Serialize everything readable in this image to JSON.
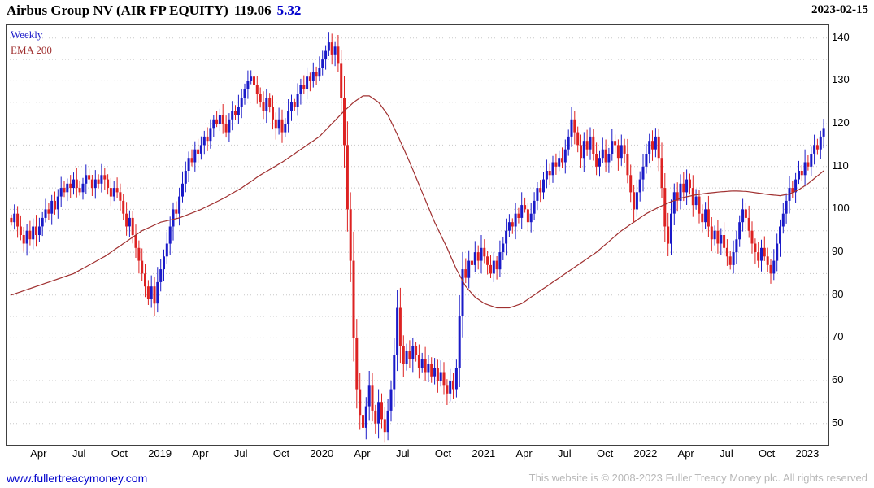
{
  "header": {
    "title": "Airbus Group NV (AIR FP EQUITY)",
    "price": "119.06",
    "change": "5.32",
    "date": "2023-02-15"
  },
  "legend": {
    "timeframe": "Weekly",
    "ema_label": "EMA 200"
  },
  "footer": {
    "site_link": "www.fullertreacymoney.com",
    "copyright": "This website is © 2008-2023 Fuller Treacy Money plc. All rights reserved"
  },
  "colors": {
    "up": "#1a1ac8",
    "down": "#dd2222",
    "ema": "#a03030",
    "grid": "#c8c8c8",
    "accent": "#0000cc",
    "muted": "#b8b8b8"
  },
  "chart_data": {
    "type": "candlestick",
    "instrument": "Airbus Group NV (AIR FP EQUITY)",
    "timeframe": "Weekly",
    "overlay": "EMA 200",
    "last_price": 119.06,
    "change": 5.32,
    "as_of": "2023-02-15",
    "ylim": [
      45,
      143
    ],
    "y_ticks": [
      50,
      60,
      70,
      80,
      90,
      100,
      110,
      120,
      130,
      140
    ],
    "y_minor_step": 5,
    "x_labels": [
      "Apr",
      "Jul",
      "Oct",
      "2019",
      "Apr",
      "Jul",
      "Oct",
      "2020",
      "Apr",
      "Jul",
      "Oct",
      "2021",
      "Apr",
      "Jul",
      "Oct",
      "2022",
      "Apr",
      "Jul",
      "Oct",
      "2023"
    ],
    "weeks_per_label": 13,
    "start_week_offset": 9,
    "first_open": 98,
    "closes": [
      97,
      99,
      96,
      94,
      92,
      95,
      93,
      96,
      94,
      96,
      98,
      100,
      99,
      102,
      100,
      103,
      105,
      104,
      106,
      105,
      107,
      105,
      104,
      106,
      108,
      107,
      105,
      107,
      106,
      108,
      107,
      105,
      103,
      105,
      104,
      102,
      99,
      96,
      98,
      94,
      91,
      88,
      85,
      82,
      79,
      82,
      78,
      83,
      86,
      89,
      92,
      96,
      100,
      99,
      103,
      106,
      109,
      112,
      111,
      114,
      113,
      115,
      117,
      116,
      119,
      121,
      120,
      122,
      120,
      118,
      121,
      123,
      122,
      124,
      126,
      128,
      130,
      131,
      129,
      127,
      125,
      123,
      126,
      124,
      121,
      119,
      121,
      118,
      120,
      123,
      125,
      124,
      127,
      129,
      128,
      131,
      130,
      132,
      131,
      133,
      135,
      137,
      139,
      136,
      138,
      134,
      126,
      115,
      100,
      88,
      70,
      58,
      52,
      49,
      54,
      59,
      53,
      50,
      55,
      51,
      48,
      53,
      58,
      66,
      77,
      68,
      64,
      67,
      65,
      68,
      66,
      63,
      65,
      62,
      64,
      61,
      63,
      60,
      62,
      59,
      57,
      60,
      58,
      63,
      75,
      86,
      84,
      88,
      87,
      90,
      88,
      91,
      89,
      87,
      85,
      88,
      86,
      90,
      92,
      95,
      97,
      96,
      99,
      98,
      101,
      100,
      97,
      99,
      102,
      105,
      104,
      107,
      109,
      108,
      111,
      110,
      112,
      111,
      114,
      117,
      121,
      118,
      115,
      112,
      116,
      114,
      117,
      113,
      110,
      112,
      114,
      111,
      113,
      116,
      115,
      112,
      115,
      113,
      108,
      104,
      100,
      104,
      107,
      110,
      113,
      116,
      114,
      117,
      112,
      105,
      96,
      92,
      99,
      104,
      102,
      106,
      104,
      107,
      105,
      101,
      103,
      99,
      97,
      100,
      96,
      93,
      95,
      92,
      94,
      91,
      89,
      87,
      90,
      93,
      97,
      100,
      98,
      95,
      92,
      90,
      88,
      91,
      89,
      87,
      85,
      88,
      92,
      96,
      99,
      102,
      105,
      104,
      107,
      109,
      108,
      111,
      110,
      113,
      115,
      114,
      117,
      119
    ],
    "ema_keypoints": [
      [
        0,
        80
      ],
      [
        10,
        82.5
      ],
      [
        20,
        85
      ],
      [
        30,
        89
      ],
      [
        36,
        92
      ],
      [
        42,
        95
      ],
      [
        48,
        97
      ],
      [
        54,
        98
      ],
      [
        61,
        100
      ],
      [
        68,
        102.5
      ],
      [
        74,
        105
      ],
      [
        80,
        108
      ],
      [
        87,
        111
      ],
      [
        93,
        114
      ],
      [
        99,
        117
      ],
      [
        103,
        120
      ],
      [
        107,
        123
      ],
      [
        110,
        125
      ],
      [
        113,
        126.5
      ],
      [
        115,
        126.5
      ],
      [
        118,
        125
      ],
      [
        121,
        122
      ],
      [
        124,
        117.5
      ],
      [
        128,
        111
      ],
      [
        132,
        104
      ],
      [
        136,
        97
      ],
      [
        140,
        91
      ],
      [
        143,
        86
      ],
      [
        146,
        82
      ],
      [
        149,
        79.5
      ],
      [
        152,
        78
      ],
      [
        156,
        77
      ],
      [
        160,
        77
      ],
      [
        164,
        78
      ],
      [
        168,
        80
      ],
      [
        172,
        82
      ],
      [
        176,
        84
      ],
      [
        180,
        86
      ],
      [
        184,
        88
      ],
      [
        188,
        90
      ],
      [
        192,
        92.5
      ],
      [
        196,
        95
      ],
      [
        200,
        97
      ],
      [
        204,
        99
      ],
      [
        208,
        100.5
      ],
      [
        212,
        101.8
      ],
      [
        216,
        102.8
      ],
      [
        220,
        103.4
      ],
      [
        224,
        103.8
      ],
      [
        228,
        104.1
      ],
      [
        232,
        104.3
      ],
      [
        236,
        104.2
      ],
      [
        240,
        103.8
      ],
      [
        244,
        103.4
      ],
      [
        247,
        103.2
      ],
      [
        250,
        103.6
      ],
      [
        253,
        104.6
      ],
      [
        256,
        106
      ],
      [
        259,
        107.8
      ],
      [
        261,
        109
      ]
    ]
  }
}
